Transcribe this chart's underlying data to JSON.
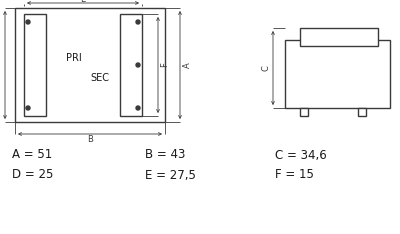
{
  "bg_color": "#ffffff",
  "line_color": "#3a3a3a",
  "text_color": "#1a1a1a",
  "dim_color": "#3a3a3a",
  "labels": {
    "A": "A = 51",
    "B": "B = 43",
    "C": "C = 34,6",
    "D": "D = 25",
    "E": "E = 27,5",
    "F": "F = 15"
  },
  "label_fontsize": 8.5,
  "dim_fontsize": 6.0,
  "body_lw": 1.0,
  "dim_lw": 0.6
}
